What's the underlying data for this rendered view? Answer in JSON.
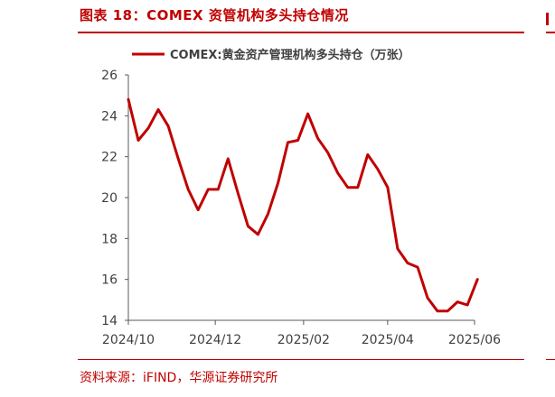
{
  "figure": {
    "title": "图表 18：COMEX 资管机构多头持仓情况",
    "source": "资料来源：iFIND，华源证券研究所"
  },
  "colors": {
    "accent": "#c00000",
    "axis": "#595959",
    "text": "#404040"
  },
  "chart_data": {
    "type": "line",
    "title": "",
    "xlabel": "",
    "ylabel": "",
    "ylim": [
      14,
      26
    ],
    "yticks": [
      "14",
      "16",
      "18",
      "20",
      "22",
      "24",
      "26"
    ],
    "xticks": [
      "2024/10",
      "2024/12",
      "2025/02",
      "2025/04",
      "2025/06"
    ],
    "grid": false,
    "legend_position": "top-center",
    "series": [
      {
        "name": "COMEX:黄金资产管理机构多头持仓（万张）",
        "color": "#c00000",
        "x": [
          "2024-10-01",
          "2024-10-08",
          "2024-10-15",
          "2024-10-22",
          "2024-10-29",
          "2024-11-05",
          "2024-11-12",
          "2024-11-19",
          "2024-11-26",
          "2024-12-03",
          "2024-12-10",
          "2024-12-17",
          "2024-12-24",
          "2024-12-31",
          "2025-01-07",
          "2025-01-14",
          "2025-01-21",
          "2025-01-28",
          "2025-02-04",
          "2025-02-11",
          "2025-02-18",
          "2025-02-25",
          "2025-03-04",
          "2025-03-11",
          "2025-03-18",
          "2025-03-25",
          "2025-04-01",
          "2025-04-08",
          "2025-04-15",
          "2025-04-22",
          "2025-04-29",
          "2025-05-06",
          "2025-05-13",
          "2025-05-20",
          "2025-05-27",
          "2025-06-03"
        ],
        "values": [
          24.8,
          22.8,
          23.4,
          24.3,
          23.5,
          21.9,
          20.4,
          19.4,
          20.4,
          20.4,
          21.9,
          20.2,
          18.6,
          18.2,
          19.2,
          20.7,
          22.7,
          22.8,
          24.1,
          22.9,
          22.2,
          21.2,
          20.5,
          20.5,
          22.1,
          21.4,
          20.5,
          17.5,
          16.8,
          16.6,
          15.1,
          14.45,
          14.45,
          14.9,
          14.75,
          16.0
        ]
      }
    ]
  }
}
